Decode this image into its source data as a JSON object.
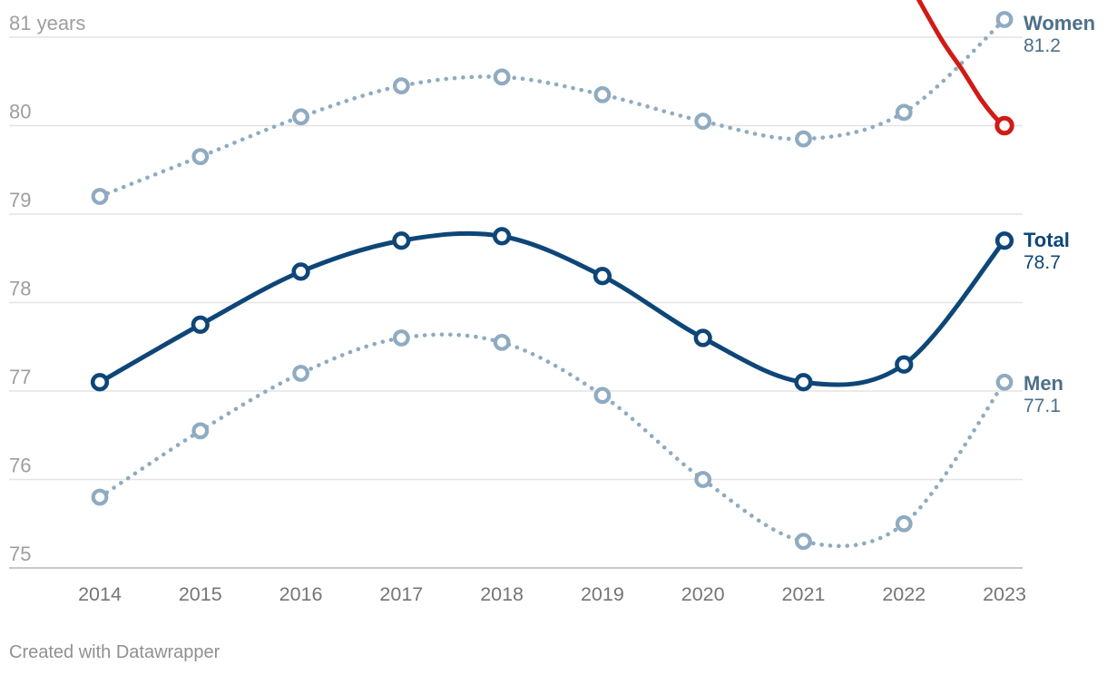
{
  "chart_data": {
    "type": "line",
    "x": [
      2014,
      2015,
      2016,
      2017,
      2018,
      2019,
      2020,
      2021,
      2022,
      2023
    ],
    "x_tick_labels": [
      "2014",
      "2015",
      "2016",
      "2017",
      "2018",
      "2019",
      "2020",
      "2021",
      "2022",
      "2023"
    ],
    "y_ticks": [
      {
        "value": 81,
        "label": "81 years"
      },
      {
        "value": 80,
        "label": "80"
      },
      {
        "value": 79,
        "label": "79"
      },
      {
        "value": 78,
        "label": "78"
      },
      {
        "value": 77,
        "label": "77"
      },
      {
        "value": 76,
        "label": "76"
      },
      {
        "value": 75,
        "label": "75"
      }
    ],
    "ylim": [
      74.75,
      81.45
    ],
    "grid": true,
    "legend_position": "right-end-labels",
    "series": [
      {
        "name": "Men",
        "style": "dotted",
        "values": [
          75.8,
          76.55,
          77.2,
          77.6,
          77.55,
          76.95,
          76.0,
          75.3,
          75.5,
          77.1
        ],
        "end_label": {
          "name": "Men",
          "value": "77.1"
        }
      },
      {
        "name": "Women",
        "style": "dotted",
        "values": [
          79.2,
          79.65,
          80.1,
          80.45,
          80.55,
          80.35,
          80.05,
          79.85,
          80.15,
          81.2
        ],
        "end_label": {
          "name": "Women",
          "value": "81.2"
        }
      },
      {
        "name": "Total",
        "style": "solid",
        "values": [
          77.1,
          77.75,
          78.35,
          78.7,
          78.75,
          78.3,
          77.6,
          77.1,
          77.3,
          78.7
        ],
        "end_label": {
          "name": "Total",
          "value": "78.7"
        }
      }
    ],
    "red_overlay_line": {
      "clipped_at_top": true,
      "visible_points": [
        [
          2022.06,
          81.6
        ],
        [
          2022.37,
          80.98
        ],
        [
          2022.58,
          80.63
        ],
        [
          2022.77,
          80.29
        ],
        [
          2022.91,
          80.09
        ],
        [
          2023,
          80.0
        ]
      ],
      "end_marker": {
        "x": 2023,
        "y": 80.0
      }
    }
  },
  "colors": {
    "total_line": "#0e4678",
    "dotted_line": "#8fabc1",
    "slate_label": "#4d7089",
    "navy_label": "#0e4678",
    "red_line": "#d01b16",
    "grid": "#e3e3e3",
    "grid_baseline": "#c9c9c9",
    "y_tick_text": "#9e9e9e",
    "x_tick_text": "#757575",
    "footer_text": "#909090",
    "marker_fill": "#ffffff"
  },
  "footer": {
    "credit": "Created with Datawrapper"
  }
}
